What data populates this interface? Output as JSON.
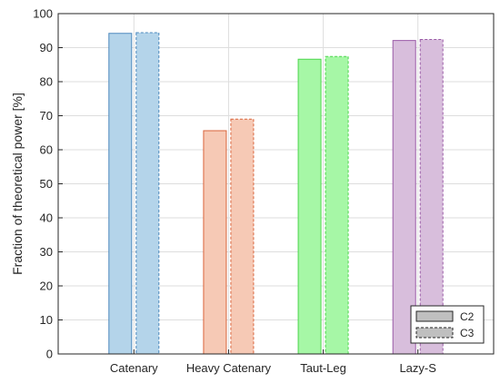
{
  "chart_data": {
    "type": "bar",
    "categories": [
      "Catenary",
      "Heavy Catenary",
      "Taut-Leg",
      "Lazy-S"
    ],
    "series": [
      {
        "name": "C2",
        "values": [
          94.2,
          65.6,
          86.6,
          92.1
        ],
        "line_style": "solid"
      },
      {
        "name": "C3",
        "values": [
          94.4,
          69.0,
          87.4,
          92.4
        ],
        "line_style": "dashed"
      }
    ],
    "category_colors": [
      {
        "fill": "#b4d4ea",
        "stroke": "#4d89bd"
      },
      {
        "fill": "#f6c9b5",
        "stroke": "#d9643b"
      },
      {
        "fill": "#a6f7a6",
        "stroke": "#4bd64b"
      },
      {
        "fill": "#d8bedc",
        "stroke": "#9a5aa6"
      }
    ],
    "legend_colors": {
      "fill": "#bfbfbf",
      "stroke": "#262626"
    },
    "xlabel": "",
    "ylabel": "Fraction of theoretical power [%]",
    "ylim": [
      0,
      100
    ],
    "yticks": [
      0,
      10,
      20,
      30,
      40,
      50,
      60,
      70,
      80,
      90,
      100
    ],
    "grid": true,
    "legend_position": "bottom-right"
  }
}
